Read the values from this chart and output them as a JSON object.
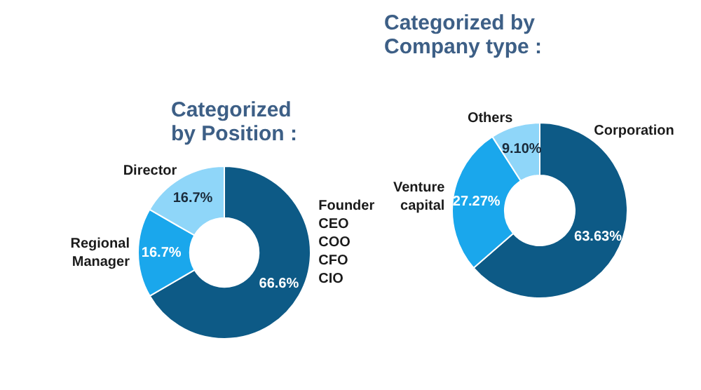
{
  "chart_data": [
    {
      "type": "donut",
      "title": "Categorized by Position :",
      "categories": [
        "Founder CEO COO CFO CIO",
        "Regional Manager",
        "Director"
      ],
      "values": [
        66.6,
        16.7,
        16.7
      ],
      "colors": [
        "#0d5a86",
        "#1aa7ec",
        "#8fd6f9"
      ],
      "value_labels": [
        "66.6%",
        "16.7%",
        "16.7%"
      ]
    },
    {
      "type": "donut",
      "title": "Categorized by Company type :",
      "categories": [
        "Corporation",
        "Venture capital",
        "Others"
      ],
      "values": [
        63.63,
        27.27,
        9.1
      ],
      "colors": [
        "#0d5a86",
        "#1aa7ec",
        "#8fd6f9"
      ],
      "value_labels": [
        "63.63%",
        "27.27%",
        "9.10%"
      ]
    }
  ]
}
